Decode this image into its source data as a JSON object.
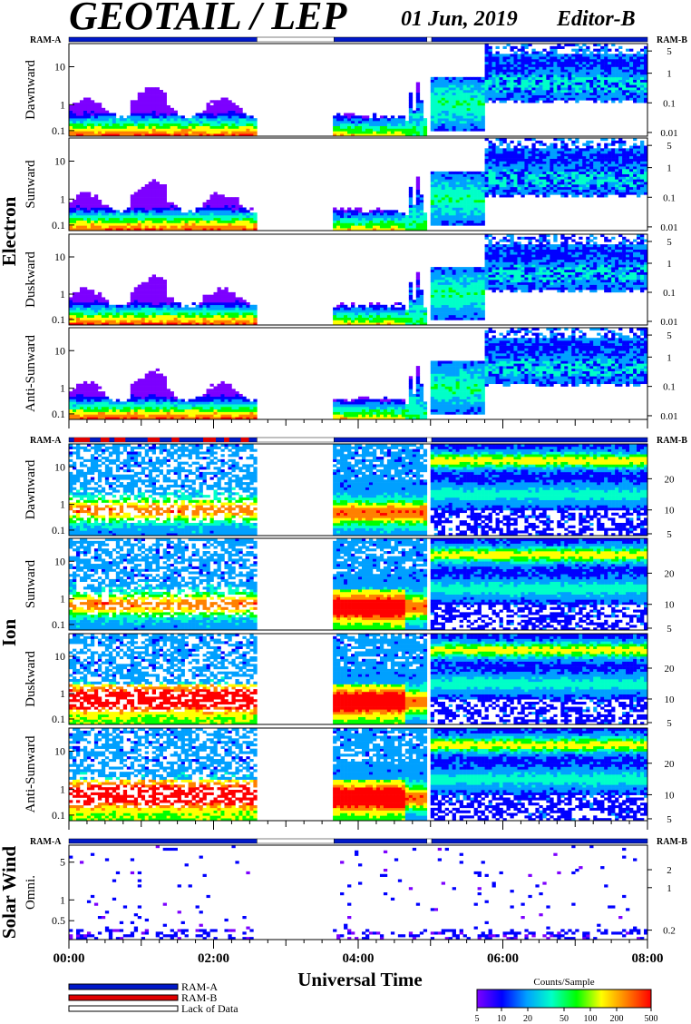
{
  "header": {
    "instrument": "GEOTAIL / LEP",
    "date": "01 Jun, 2019",
    "editor": "Editor-B"
  },
  "chart_data": {
    "type": "heatmap",
    "x_axis": {
      "label": "Universal Time",
      "range": [
        "00:00",
        "08:00"
      ],
      "tick_labels": [
        "00:00",
        "02:00",
        "04:00",
        "06:00",
        "08:00"
      ],
      "minor_tick_minutes": 15
    },
    "data_gap": {
      "from": "02:36",
      "to": "03:40"
    },
    "short_gap": {
      "from": "04:57",
      "to": "05:01"
    },
    "ram_labels": {
      "left": "RAM-A",
      "right": "RAM-B"
    },
    "ram_bars": [
      {
        "segments": [
          {
            "from": "00:00",
            "to": "02:36",
            "mode": "RAM-A"
          },
          {
            "from": "02:36",
            "to": "03:40",
            "mode": "Lack of Data"
          },
          {
            "from": "03:40",
            "to": "04:57",
            "mode": "RAM-A"
          },
          {
            "from": "04:57",
            "to": "05:01",
            "mode": "Lack of Data"
          },
          {
            "from": "05:01",
            "to": "08:00",
            "mode": "RAM-A"
          }
        ]
      },
      {
        "segments": [
          {
            "from": "00:00",
            "to": "02:36",
            "mode": "RAM-A/RAM-B mixed"
          },
          {
            "from": "02:36",
            "to": "03:40",
            "mode": "Lack of Data"
          },
          {
            "from": "03:40",
            "to": "04:57",
            "mode": "RAM-A"
          },
          {
            "from": "04:57",
            "to": "05:01",
            "mode": "Lack of Data"
          },
          {
            "from": "05:01",
            "to": "08:00",
            "mode": "RAM-A"
          }
        ]
      },
      {
        "segments": [
          {
            "from": "00:00",
            "to": "02:36",
            "mode": "RAM-A"
          },
          {
            "from": "02:36",
            "to": "03:40",
            "mode": "Lack of Data"
          },
          {
            "from": "03:40",
            "to": "04:57",
            "mode": "RAM-A"
          },
          {
            "from": "04:57",
            "to": "05:01",
            "mode": "Lack of Data"
          },
          {
            "from": "05:01",
            "to": "08:00",
            "mode": "RAM-A"
          }
        ]
      }
    ],
    "groups": [
      {
        "name": "Electron",
        "panels": [
          {
            "name": "Dawnward",
            "left_ticks": [
              "10",
              "1",
              "0.1"
            ],
            "right_ticks": [
              "5",
              "1",
              "0.1",
              "0.01"
            ]
          },
          {
            "name": "Sunward",
            "left_ticks": [
              "10",
              "1",
              "0.1"
            ],
            "right_ticks": [
              "5",
              "1",
              "0.1",
              "0.01"
            ]
          },
          {
            "name": "Duskward",
            "left_ticks": [
              "10",
              "1",
              "0.1"
            ],
            "right_ticks": [
              "5",
              "1",
              "0.1",
              "0.01"
            ]
          },
          {
            "name": "Anti-Sunward",
            "left_ticks": [
              "10",
              "1",
              "0.1"
            ],
            "right_ticks": [
              "5",
              "1",
              "0.1",
              "0.01"
            ]
          }
        ]
      },
      {
        "name": "Ion",
        "panels": [
          {
            "name": "Dawnward",
            "left_ticks": [
              "10",
              "1",
              "0.1"
            ],
            "right_ticks": [
              "20",
              "10",
              "5"
            ]
          },
          {
            "name": "Sunward",
            "left_ticks": [
              "10",
              "1",
              "0.1"
            ],
            "right_ticks": [
              "20",
              "10",
              "5"
            ]
          },
          {
            "name": "Duskward",
            "left_ticks": [
              "10",
              "1",
              "0.1"
            ],
            "right_ticks": [
              "20",
              "10",
              "5"
            ]
          },
          {
            "name": "Anti-Sunward",
            "left_ticks": [
              "10",
              "1",
              "0.1"
            ],
            "right_ticks": [
              "20",
              "10",
              "5"
            ]
          }
        ]
      },
      {
        "name": "Solar Wind",
        "panels": [
          {
            "name": "Omni.",
            "left_ticks": [
              "5",
              "1",
              "0.5"
            ],
            "right_ticks": [
              "2",
              "1",
              "0.2"
            ]
          }
        ]
      }
    ],
    "legend": [
      {
        "label": "RAM-A",
        "color": "#0018c8"
      },
      {
        "label": "RAM-B",
        "color": "#e00000"
      },
      {
        "label": "Lack of Data",
        "color": "#ffffff"
      }
    ],
    "colorbar": {
      "title": "Counts/Sample",
      "ticks": [
        "5",
        "10",
        "20",
        "50",
        "100",
        "200",
        "500"
      ],
      "colors": [
        "#7d00ff",
        "#0000ff",
        "#00a0ff",
        "#00ffc8",
        "#00ff00",
        "#ffff00",
        "#ff8000",
        "#ff0000"
      ]
    }
  }
}
